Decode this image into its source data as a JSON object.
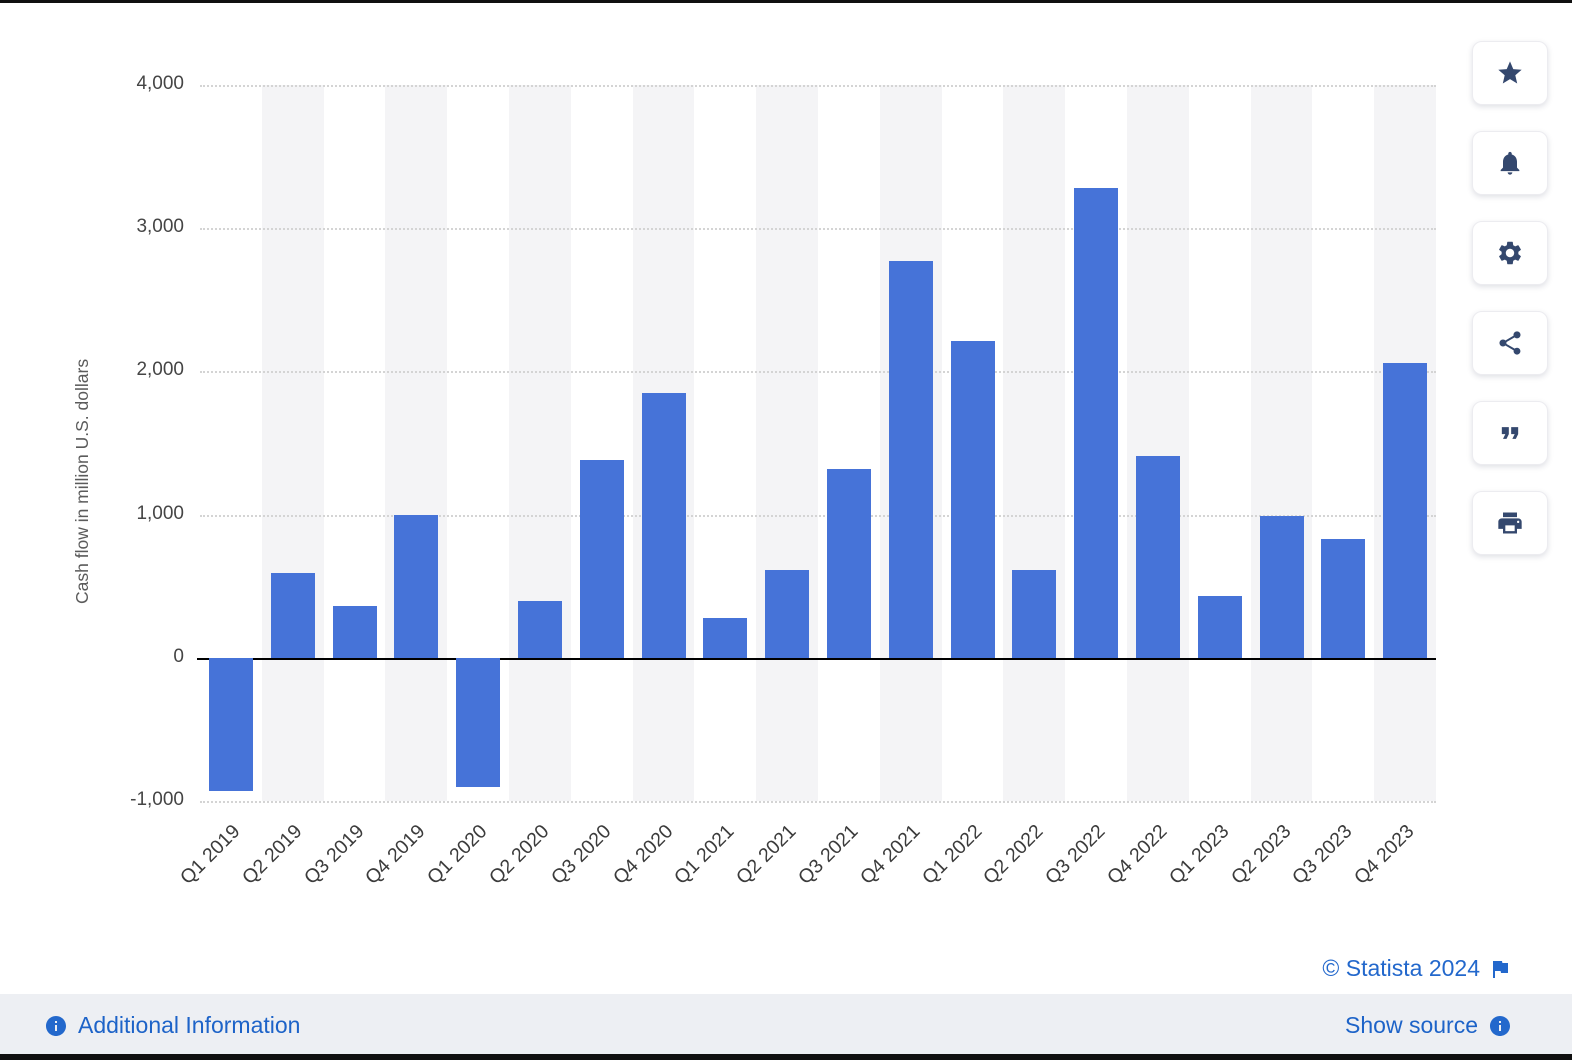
{
  "chart_data": {
    "type": "bar",
    "title": "",
    "xlabel": "",
    "ylabel": "Cash flow in million U.S. dollars",
    "categories": [
      "Q1 2019",
      "Q2 2019",
      "Q3 2019",
      "Q4 2019",
      "Q1 2020",
      "Q2 2020",
      "Q3 2020",
      "Q4 2020",
      "Q1 2021",
      "Q2 2021",
      "Q3 2021",
      "Q4 2021",
      "Q1 2022",
      "Q2 2022",
      "Q3 2022",
      "Q4 2022",
      "Q1 2023",
      "Q2 2023",
      "Q3 2023",
      "Q4 2023"
    ],
    "values": [
      -930,
      590,
      360,
      1000,
      -900,
      400,
      1380,
      1850,
      280,
      610,
      1320,
      2770,
      2210,
      610,
      3280,
      1410,
      430,
      990,
      830,
      2060
    ],
    "ylim": [
      -1000,
      4000
    ],
    "yticks": [
      -1000,
      0,
      1000,
      2000,
      3000,
      4000
    ],
    "grid": "horizontal-dotted",
    "zero_line": true,
    "column_stripes": "alternating",
    "legend": false,
    "bar_color": "#4673d8",
    "stripe_color": "#f4f4f6"
  },
  "toolbar": {
    "buttons": [
      {
        "name": "favorite",
        "icon": "star-icon"
      },
      {
        "name": "notifications",
        "icon": "bell-icon"
      },
      {
        "name": "settings",
        "icon": "gear-icon"
      },
      {
        "name": "share",
        "icon": "share-icon"
      },
      {
        "name": "cite",
        "icon": "quote-icon"
      },
      {
        "name": "print",
        "icon": "printer-icon"
      }
    ]
  },
  "footer": {
    "additional_information": "Additional Information",
    "copyright": "© Statista 2024",
    "show_source": "Show source"
  },
  "colors": {
    "link": "#2368cc",
    "toolbar_icon": "#34486e"
  }
}
